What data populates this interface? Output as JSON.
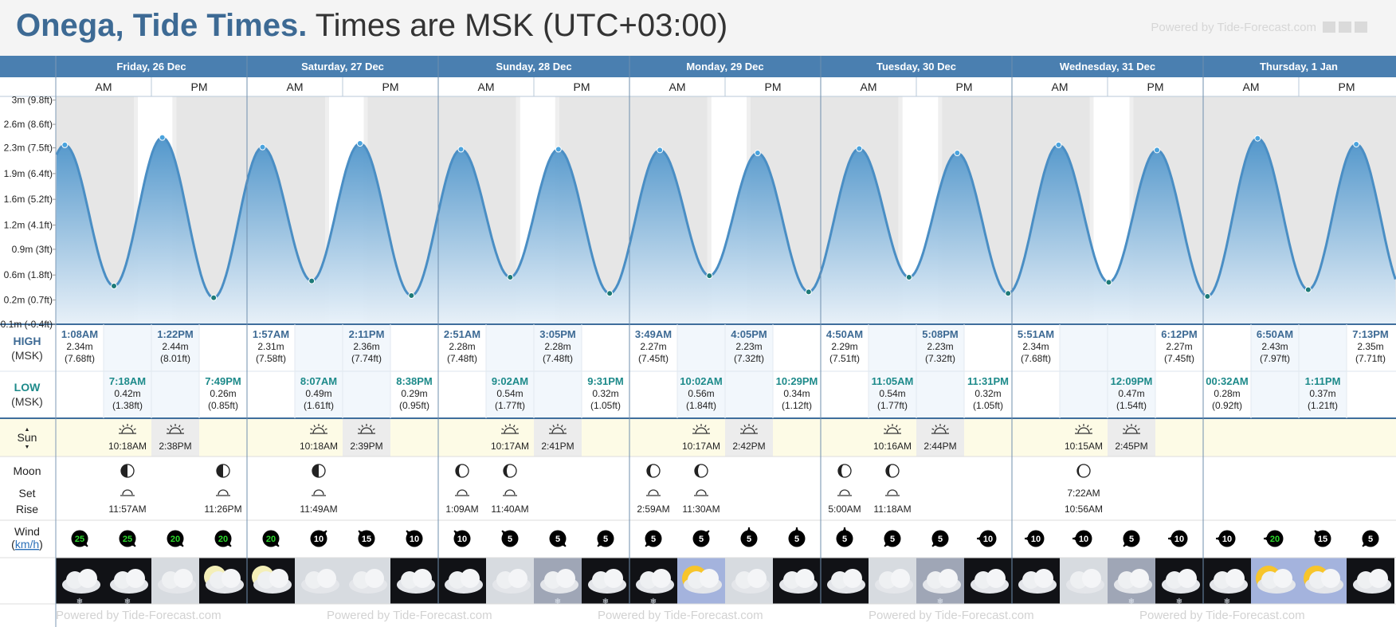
{
  "header": {
    "title_place": "Onega, Tide Times.",
    "title_tz": " Times are MSK (UTC+03:00)",
    "powered_by": "Powered by Tide-Forecast.com"
  },
  "days": [
    {
      "label": "Friday, 26 Dec"
    },
    {
      "label": "Saturday, 27 Dec"
    },
    {
      "label": "Sunday, 28 Dec"
    },
    {
      "label": "Monday, 29 Dec"
    },
    {
      "label": "Tuesday, 30 Dec"
    },
    {
      "label": "Wednesday, 31 Dec"
    },
    {
      "label": "Thursday, 1 Jan"
    }
  ],
  "ampm": [
    "AM",
    "PM"
  ],
  "row_labels": {
    "high_title": "HIGH",
    "high_sub": "(MSK)",
    "low_title": "LOW",
    "low_sub": "(MSK)",
    "sun": "Sun",
    "moon": "Moon",
    "moon_set": "Set",
    "moon_rise": "Rise",
    "wind": "Wind",
    "wind_unit": "km/h"
  },
  "y_axis": [
    {
      "label": "3m (9.8ft)",
      "m": 2.95
    },
    {
      "label": "2.6m (8.6ft)",
      "m": 2.62
    },
    {
      "label": "2.3m (7.5ft)",
      "m": 2.3
    },
    {
      "label": "1.9m (6.4ft)",
      "m": 1.95
    },
    {
      "label": "1.6m (5.2ft)",
      "m": 1.6
    },
    {
      "label": "1.2m (4.1ft)",
      "m": 1.25
    },
    {
      "label": "0.9m (3ft)",
      "m": 0.92
    },
    {
      "label": "0.6m (1.8ft)",
      "m": 0.57
    },
    {
      "label": "0.2m (0.7ft)",
      "m": 0.23
    },
    {
      "label": "-0.1m (-0.4ft)",
      "m": -0.1
    }
  ],
  "chart_data": {
    "type": "area",
    "title": "Onega, Tide Times.",
    "y_unit": "m",
    "ylim": [
      -0.1,
      3.0
    ],
    "x_range": [
      "2025-12-26 00:00",
      "2026-01-01 23:59"
    ],
    "high_tides": [
      {
        "day": 0,
        "time": "1:08AM",
        "m": "2.34m",
        "ft": "(7.68ft)",
        "value": 2.34
      },
      {
        "day": 0,
        "time": "1:22PM",
        "m": "2.44m",
        "ft": "(8.01ft)",
        "value": 2.44
      },
      {
        "day": 1,
        "time": "1:57AM",
        "m": "2.31m",
        "ft": "(7.58ft)",
        "value": 2.31
      },
      {
        "day": 1,
        "time": "2:11PM",
        "m": "2.36m",
        "ft": "(7.74ft)",
        "value": 2.36
      },
      {
        "day": 2,
        "time": "2:51AM",
        "m": "2.28m",
        "ft": "(7.48ft)",
        "value": 2.28
      },
      {
        "day": 2,
        "time": "3:05PM",
        "m": "2.28m",
        "ft": "(7.48ft)",
        "value": 2.28
      },
      {
        "day": 3,
        "time": "3:49AM",
        "m": "2.27m",
        "ft": "(7.45ft)",
        "value": 2.27
      },
      {
        "day": 3,
        "time": "4:05PM",
        "m": "2.23m",
        "ft": "(7.32ft)",
        "value": 2.23
      },
      {
        "day": 4,
        "time": "4:50AM",
        "m": "2.29m",
        "ft": "(7.51ft)",
        "value": 2.29
      },
      {
        "day": 4,
        "time": "5:08PM",
        "m": "2.23m",
        "ft": "(7.32ft)",
        "value": 2.23
      },
      {
        "day": 5,
        "time": "5:51AM",
        "m": "2.34m",
        "ft": "(7.68ft)",
        "value": 2.34
      },
      {
        "day": 5,
        "time": "6:12PM",
        "m": "2.27m",
        "ft": "(7.45ft)",
        "value": 2.27
      },
      {
        "day": 6,
        "time": "6:50AM",
        "m": "2.43m",
        "ft": "(7.97ft)",
        "value": 2.43
      },
      {
        "day": 6,
        "time": "7:13PM",
        "m": "2.35m",
        "ft": "(7.71ft)",
        "value": 2.35
      }
    ],
    "low_tides": [
      {
        "day": 0,
        "time": "7:18AM",
        "m": "0.42m",
        "ft": "(1.38ft)",
        "value": 0.42
      },
      {
        "day": 0,
        "time": "7:49PM",
        "m": "0.26m",
        "ft": "(0.85ft)",
        "value": 0.26
      },
      {
        "day": 1,
        "time": "8:07AM",
        "m": "0.49m",
        "ft": "(1.61ft)",
        "value": 0.49
      },
      {
        "day": 1,
        "time": "8:38PM",
        "m": "0.29m",
        "ft": "(0.95ft)",
        "value": 0.29
      },
      {
        "day": 2,
        "time": "9:02AM",
        "m": "0.54m",
        "ft": "(1.77ft)",
        "value": 0.54
      },
      {
        "day": 2,
        "time": "9:31PM",
        "m": "0.32m",
        "ft": "(1.05ft)",
        "value": 0.32
      },
      {
        "day": 3,
        "time": "10:02AM",
        "m": "0.56m",
        "ft": "(1.84ft)",
        "value": 0.56
      },
      {
        "day": 3,
        "time": "10:29PM",
        "m": "0.34m",
        "ft": "(1.12ft)",
        "value": 0.34
      },
      {
        "day": 4,
        "time": "11:05AM",
        "m": "0.54m",
        "ft": "(1.77ft)",
        "value": 0.54
      },
      {
        "day": 4,
        "time": "11:31PM",
        "m": "0.32m",
        "ft": "(1.05ft)",
        "value": 0.32
      },
      {
        "day": 5,
        "time": "12:09PM",
        "m": "0.47m",
        "ft": "(1.54ft)",
        "value": 0.47
      },
      {
        "day": 6,
        "time": "00:32AM",
        "m": "0.28m",
        "ft": "(0.92ft)",
        "value": 0.28
      },
      {
        "day": 6,
        "time": "1:11PM",
        "m": "0.37m",
        "ft": "(1.21ft)",
        "value": 0.37
      }
    ]
  },
  "sun": [
    {
      "day": 0,
      "rise": "10:18AM",
      "set": "2:38PM"
    },
    {
      "day": 1,
      "rise": "10:18AM",
      "set": "2:39PM"
    },
    {
      "day": 2,
      "rise": "10:17AM",
      "set": "2:41PM"
    },
    {
      "day": 3,
      "rise": "10:17AM",
      "set": "2:42PM"
    },
    {
      "day": 4,
      "rise": "10:16AM",
      "set": "2:44PM"
    },
    {
      "day": 5,
      "rise": "10:15AM",
      "set": "2:45PM"
    }
  ],
  "moon": [
    {
      "day": 0,
      "col": 1,
      "kind": "set",
      "time": "11:57AM",
      "phase": "last-quarter-moon-icon"
    },
    {
      "day": 0,
      "col": 3,
      "kind": "rise",
      "time": "11:26PM",
      "phase": "last-quarter-moon-icon"
    },
    {
      "day": 1,
      "col": 1,
      "kind": "set",
      "time": "11:49AM",
      "phase": "last-quarter-moon-icon"
    },
    {
      "day": 2,
      "col": 0,
      "kind": "rise",
      "time": "1:09AM",
      "phase": "waning-crescent-moon-icon"
    },
    {
      "day": 2,
      "col": 1,
      "kind": "set",
      "time": "11:40AM",
      "phase": "waning-crescent-moon-icon"
    },
    {
      "day": 3,
      "col": 0,
      "kind": "rise",
      "time": "2:59AM",
      "phase": "waning-crescent-moon-icon"
    },
    {
      "day": 3,
      "col": 1,
      "kind": "set",
      "time": "11:30AM",
      "phase": "waning-crescent-moon-icon"
    },
    {
      "day": 4,
      "col": 0,
      "kind": "rise",
      "time": "5:00AM",
      "phase": "waning-crescent-moon-icon"
    },
    {
      "day": 4,
      "col": 1,
      "kind": "set",
      "time": "11:18AM",
      "phase": "waning-crescent-moon-icon"
    },
    {
      "day": 5,
      "col": 1,
      "kind": "pair",
      "rise": "7:22AM",
      "set": "10:56AM",
      "phase": "thin-crescent-moon-icon"
    }
  ],
  "wind": [
    {
      "speed": "25",
      "color": "#2ad82a",
      "dir": 135
    },
    {
      "speed": "25",
      "color": "#2ad82a",
      "dir": 135
    },
    {
      "speed": "20",
      "color": "#2ad82a",
      "dir": 135
    },
    {
      "speed": "20",
      "color": "#2ad82a",
      "dir": 135
    },
    {
      "speed": "20",
      "color": "#2ad82a",
      "dir": 135
    },
    {
      "speed": "10",
      "color": "#ffffff",
      "dir": 45
    },
    {
      "speed": "15",
      "color": "#ffffff",
      "dir": -45
    },
    {
      "speed": "10",
      "color": "#ffffff",
      "dir": -45
    },
    {
      "speed": "10",
      "color": "#ffffff",
      "dir": -45
    },
    {
      "speed": "5",
      "color": "#ffffff",
      "dir": -45
    },
    {
      "speed": "5",
      "color": "#ffffff",
      "dir": 135
    },
    {
      "speed": "5",
      "color": "#ffffff",
      "dir": 225
    },
    {
      "speed": "5",
      "color": "#ffffff",
      "dir": 225
    },
    {
      "speed": "5",
      "color": "#ffffff",
      "dir": 45
    },
    {
      "speed": "5",
      "color": "#ffffff",
      "dir": 0
    },
    {
      "speed": "5",
      "color": "#ffffff",
      "dir": 0
    },
    {
      "speed": "5",
      "color": "#ffffff",
      "dir": 0
    },
    {
      "speed": "5",
      "color": "#ffffff",
      "dir": 225
    },
    {
      "speed": "5",
      "color": "#ffffff",
      "dir": 225
    },
    {
      "speed": "10",
      "color": "#ffffff",
      "dir": 270
    },
    {
      "speed": "10",
      "color": "#ffffff",
      "dir": 270
    },
    {
      "speed": "10",
      "color": "#ffffff",
      "dir": 270
    },
    {
      "speed": "5",
      "color": "#ffffff",
      "dir": 225
    },
    {
      "speed": "10",
      "color": "#ffffff",
      "dir": 270
    },
    {
      "speed": "10",
      "color": "#ffffff",
      "dir": 270
    },
    {
      "speed": "20",
      "color": "#2ad82a",
      "dir": 270
    },
    {
      "speed": "15",
      "color": "#ffffff",
      "dir": -45
    },
    {
      "speed": "5",
      "color": "#ffffff",
      "dir": 225
    }
  ],
  "weather": [
    {
      "icon": "cloudy-night-snow-icon",
      "sky": "night"
    },
    {
      "icon": "cloudy-night-snow-icon",
      "sky": "night"
    },
    {
      "icon": "cloudy-icon",
      "sky": "day"
    },
    {
      "icon": "moon-cloud-icon",
      "sky": "night"
    },
    {
      "icon": "moon-cloud-icon",
      "sky": "night"
    },
    {
      "icon": "cloudy-icon",
      "sky": "day"
    },
    {
      "icon": "cloudy-icon",
      "sky": "day"
    },
    {
      "icon": "cloudy-night-icon",
      "sky": "night"
    },
    {
      "icon": "cloudy-night-icon",
      "sky": "night"
    },
    {
      "icon": "cloudy-icon",
      "sky": "day"
    },
    {
      "icon": "cloudy-snow-icon",
      "sky": "dayblue"
    },
    {
      "icon": "cloudy-night-snow-icon",
      "sky": "night"
    },
    {
      "icon": "cloudy-night-snow-icon",
      "sky": "night"
    },
    {
      "icon": "sun-cloud-icon",
      "sky": "sunny"
    },
    {
      "icon": "cloudy-icon",
      "sky": "day"
    },
    {
      "icon": "cloudy-night-icon",
      "sky": "night"
    },
    {
      "icon": "cloudy-night-icon",
      "sky": "night"
    },
    {
      "icon": "cloudy-icon",
      "sky": "day"
    },
    {
      "icon": "cloudy-snow-icon",
      "sky": "dayblue"
    },
    {
      "icon": "cloudy-night-icon",
      "sky": "night"
    },
    {
      "icon": "cloudy-night-icon",
      "sky": "night"
    },
    {
      "icon": "cloudy-icon",
      "sky": "day"
    },
    {
      "icon": "cloudy-snow-icon",
      "sky": "dayblue"
    },
    {
      "icon": "cloudy-night-snow-icon",
      "sky": "night"
    },
    {
      "icon": "cloudy-night-snow-icon",
      "sky": "night"
    },
    {
      "icon": "sun-cloud-icon",
      "sky": "sunny"
    },
    {
      "icon": "sun-cloud-icon",
      "sky": "sunny"
    },
    {
      "icon": "cloudy-night-icon",
      "sky": "night"
    }
  ],
  "colors": {
    "header_band": "#4a7fb0",
    "accent_text": "#3d6a94",
    "low_text": "#1d8a8a",
    "tide_fill_top": "#4a92c9",
    "tide_fill_bottom": "#e6f0f8",
    "tide_line": "#4a8ec4",
    "sun_row": "#fdfbe6",
    "night_shade": "#e6e6e6",
    "twilight_shade": "#efefef"
  }
}
